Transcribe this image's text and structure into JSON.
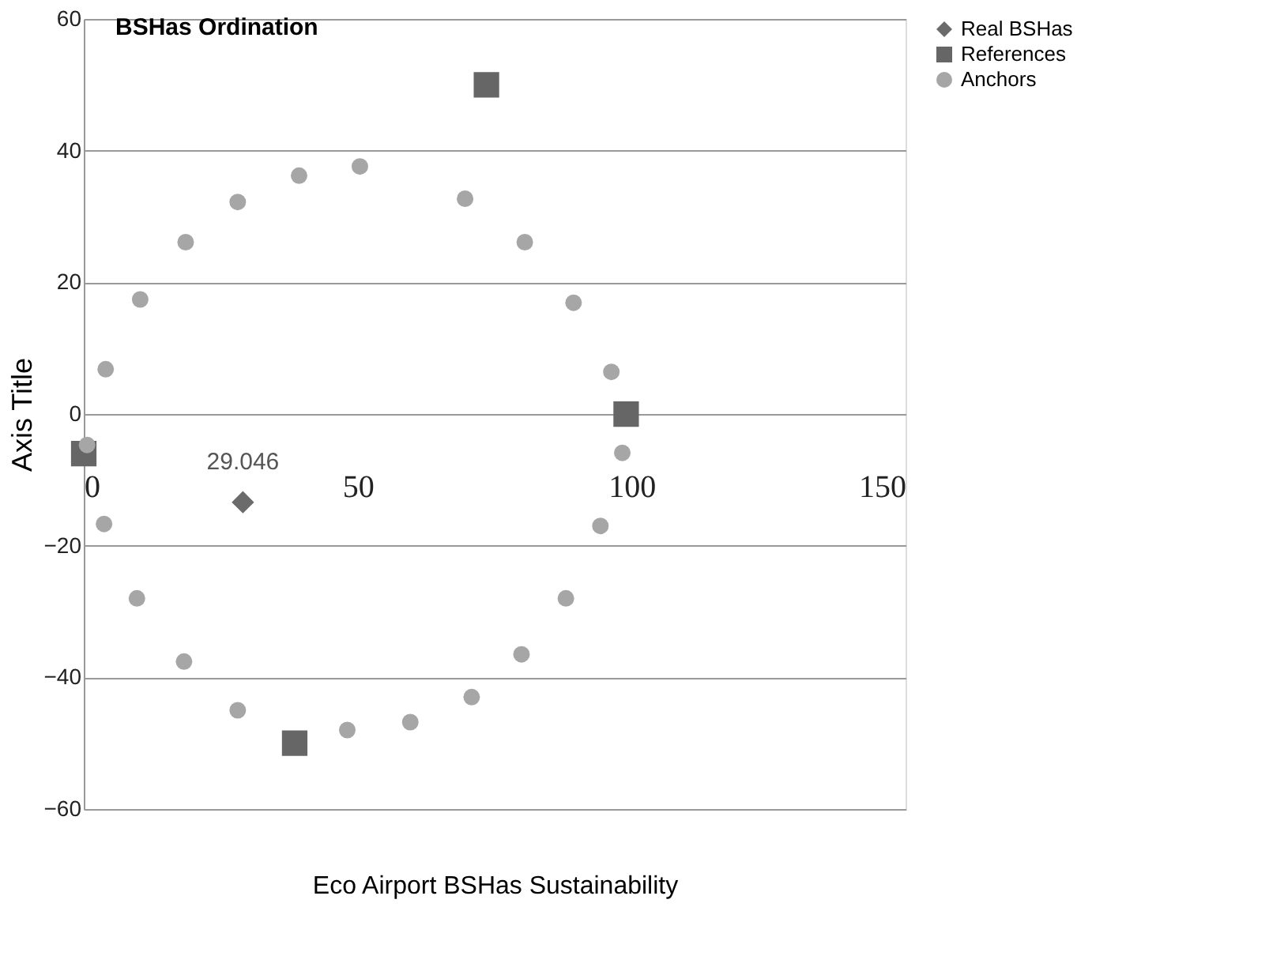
{
  "chart_data": {
    "type": "scatter",
    "title": "BSHas Ordination",
    "xlabel": "Eco Airport BSHas Sustainability",
    "ylabel": "Axis Title",
    "xlim": [
      0,
      150
    ],
    "xticks": [
      0,
      50,
      100,
      150
    ],
    "ylim": [
      -60,
      60
    ],
    "yticks": [
      -60,
      -40,
      -20,
      0,
      20,
      40,
      60
    ],
    "grid": "y",
    "legend": "right",
    "annotations": [
      {
        "text": "29.046",
        "x": 29.046,
        "y": -13.4
      }
    ],
    "series": [
      {
        "name": "Real BSHas",
        "color": "#6b6b6b",
        "marker": "diamond",
        "x": [
          29.046
        ],
        "values": [
          -13.4
        ]
      },
      {
        "name": "References",
        "color": "#666666",
        "marker": "square",
        "x": [
          0,
          38.5,
          73.5,
          99
        ],
        "values": [
          -6,
          -50,
          50,
          0
        ]
      },
      {
        "name": "Anchors",
        "color": "#a6a6a6",
        "marker": "circle",
        "x": [
          4.0,
          10.3,
          18.6,
          28.1,
          39.3,
          50.4,
          69.6,
          80.5,
          89.4,
          96.3,
          98.3,
          94.3,
          88.0,
          79.9,
          70.8,
          59.6,
          48.1,
          28.1,
          18.3,
          9.7,
          3.7,
          0.6
        ],
        "values": [
          6.8,
          17.4,
          26.1,
          32.2,
          36.2,
          37.6,
          32.7,
          26.1,
          16.9,
          6.4,
          -5.9,
          -17,
          -28,
          -36.5,
          -43,
          -46.8,
          -48,
          -45,
          -37.6,
          -28,
          -16.7,
          -4.7
        ]
      }
    ]
  }
}
